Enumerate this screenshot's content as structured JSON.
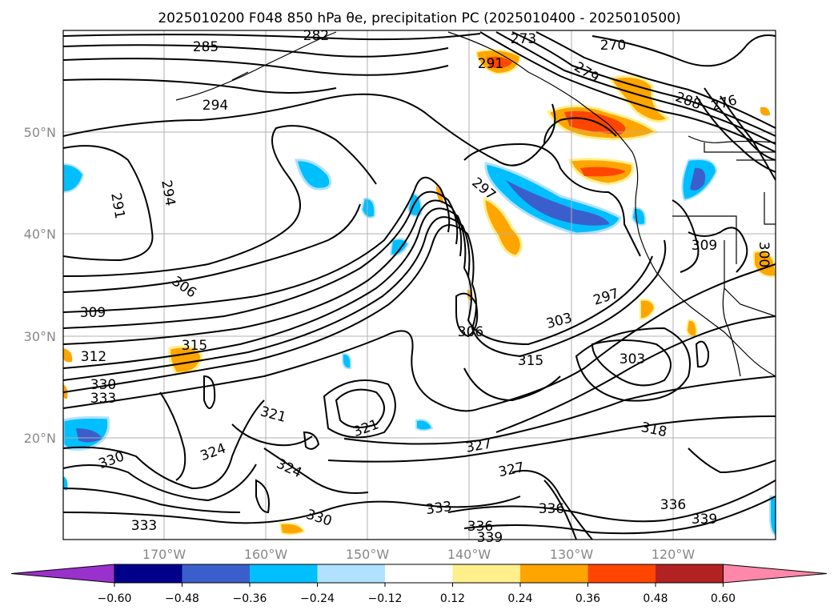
{
  "title": "2025010200 F048 850 hPa θe, precipitation PC (2025010400 - 2025010500)",
  "lat_ticks": [
    "50°N",
    "40°N",
    "30°N",
    "20°N"
  ],
  "lon_ticks": [
    "170°W",
    "160°W",
    "150°W",
    "140°W",
    "130°W",
    "120°W"
  ],
  "colorbar": {
    "colors": [
      "#9932cc",
      "#00008b",
      "#3a5fcd",
      "#00bfff",
      "#b0e2ff",
      "#ffffff",
      "#fff08c",
      "#ffa500",
      "#ff4500",
      "#b22222",
      "#ff88aa"
    ],
    "tick_labels": [
      "−0.60",
      "−0.48",
      "−0.36",
      "−0.24",
      "−0.12",
      "0.12",
      "0.24",
      "0.36",
      "0.48",
      "0.60"
    ]
  },
  "contour_labels": [
    "285",
    "282",
    "273",
    "270",
    "291",
    "279",
    "294",
    "288",
    "276",
    "297",
    "291",
    "294",
    "309",
    "306",
    "309",
    "297",
    "303",
    "306",
    "312",
    "315",
    "315",
    "303",
    "330",
    "333",
    "321",
    "321",
    "318",
    "324",
    "324",
    "327",
    "327",
    "330",
    "330",
    "333",
    "336",
    "333",
    "336",
    "339",
    "336",
    "339",
    "300"
  ]
}
